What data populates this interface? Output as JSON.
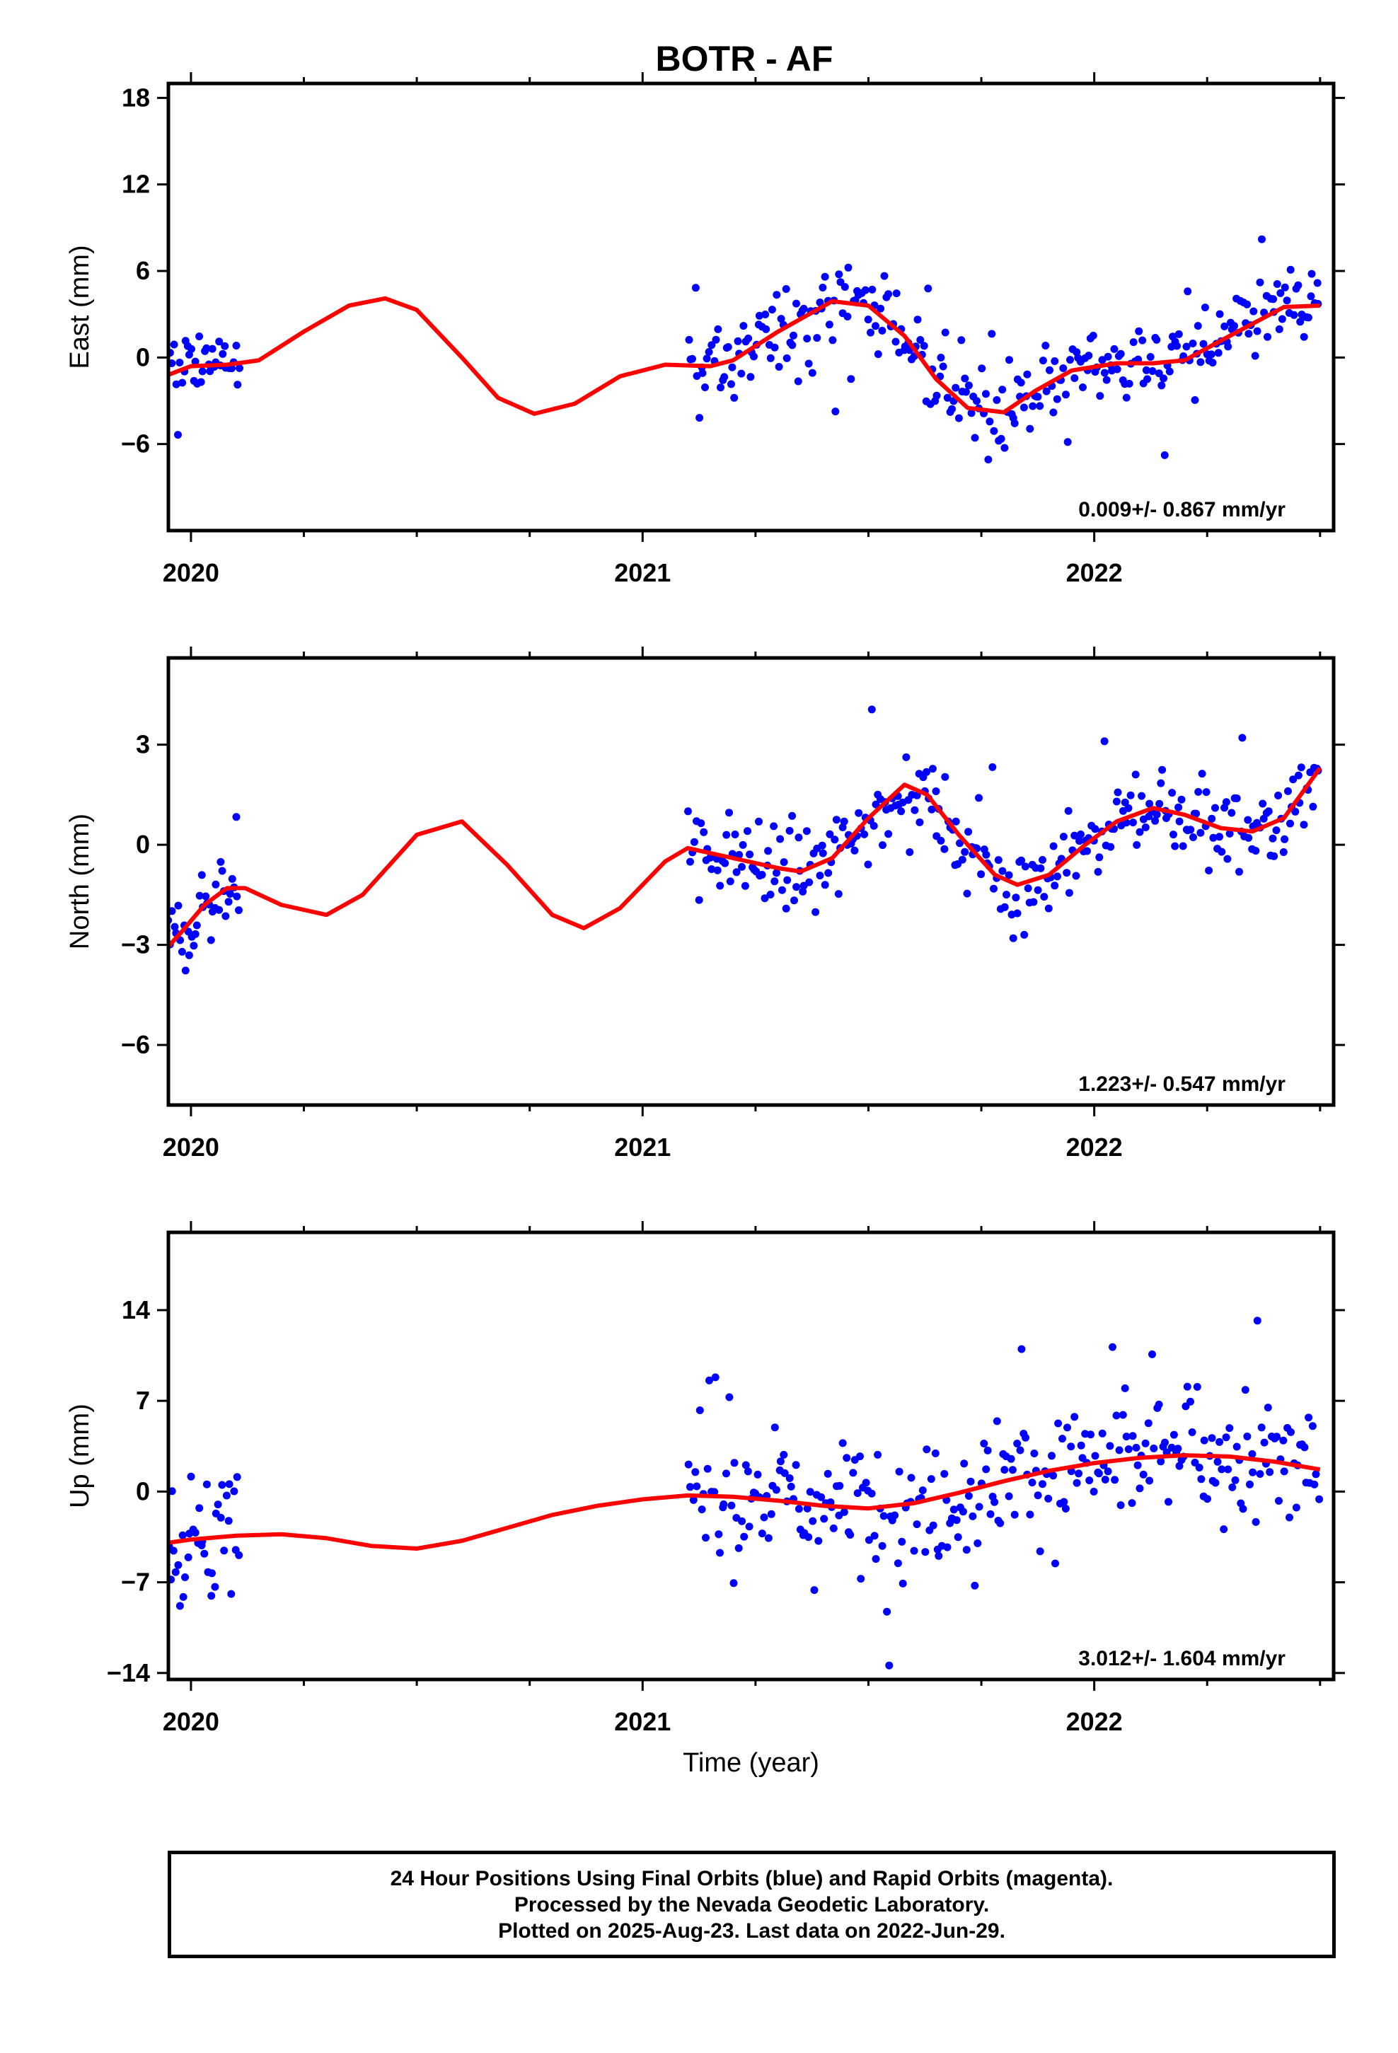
{
  "title": "BOTR - AF",
  "colors": {
    "points": "#0000ff",
    "fit": "#ff0000",
    "frame": "#000000"
  },
  "chart_data": [
    {
      "type": "scatter",
      "name": "east",
      "ylabel": "East (mm)",
      "xlabel": "",
      "rate": "0.009+/- 0.867 mm/yr",
      "xlim": [
        2019.95,
        2022.53
      ],
      "ylim": [
        -12.0,
        19.0
      ],
      "yticks": [
        -6,
        0,
        6,
        12,
        18
      ],
      "xticks": [
        2020,
        2021,
        2022
      ],
      "xtick_labels": [
        "2020",
        "2021",
        "2022"
      ],
      "fit_curve": [
        [
          2019.95,
          -1.2
        ],
        [
          2020.0,
          -0.6
        ],
        [
          2020.08,
          -0.5
        ],
        [
          2020.15,
          -0.2
        ],
        [
          2020.25,
          1.8
        ],
        [
          2020.35,
          3.6
        ],
        [
          2020.43,
          4.1
        ],
        [
          2020.5,
          3.3
        ],
        [
          2020.6,
          0.0
        ],
        [
          2020.68,
          -2.8
        ],
        [
          2020.76,
          -3.9
        ],
        [
          2020.85,
          -3.2
        ],
        [
          2020.95,
          -1.3
        ],
        [
          2021.05,
          -0.5
        ],
        [
          2021.15,
          -0.6
        ],
        [
          2021.2,
          -0.2
        ],
        [
          2021.3,
          1.8
        ],
        [
          2021.42,
          3.9
        ],
        [
          2021.5,
          3.6
        ],
        [
          2021.58,
          1.5
        ],
        [
          2021.65,
          -1.5
        ],
        [
          2021.72,
          -3.5
        ],
        [
          2021.8,
          -3.8
        ],
        [
          2021.87,
          -2.3
        ],
        [
          2021.95,
          -0.9
        ],
        [
          2022.05,
          -0.4
        ],
        [
          2022.13,
          -0.4
        ],
        [
          2022.2,
          -0.2
        ],
        [
          2022.3,
          1.5
        ],
        [
          2022.42,
          3.5
        ],
        [
          2022.5,
          3.6
        ]
      ]
    },
    {
      "type": "scatter",
      "name": "north",
      "ylabel": "North (mm)",
      "xlabel": "",
      "rate": "1.223+/- 0.547 mm/yr",
      "xlim": [
        2019.95,
        2022.53
      ],
      "ylim": [
        -7.8,
        5.6
      ],
      "yticks": [
        -6,
        -3,
        0,
        3
      ],
      "xticks": [
        2020,
        2021,
        2022
      ],
      "xtick_labels": [
        "2020",
        "2021",
        "2022"
      ],
      "fit_curve": [
        [
          2019.94,
          -3.2
        ],
        [
          2019.98,
          -2.6
        ],
        [
          2020.03,
          -1.8
        ],
        [
          2020.08,
          -1.3
        ],
        [
          2020.12,
          -1.3
        ],
        [
          2020.2,
          -1.8
        ],
        [
          2020.3,
          -2.1
        ],
        [
          2020.38,
          -1.5
        ],
        [
          2020.5,
          0.3
        ],
        [
          2020.6,
          0.7
        ],
        [
          2020.7,
          -0.6
        ],
        [
          2020.8,
          -2.1
        ],
        [
          2020.87,
          -2.5
        ],
        [
          2020.95,
          -1.9
        ],
        [
          2021.05,
          -0.5
        ],
        [
          2021.1,
          -0.1
        ],
        [
          2021.2,
          -0.4
        ],
        [
          2021.3,
          -0.7
        ],
        [
          2021.35,
          -0.8
        ],
        [
          2021.42,
          -0.4
        ],
        [
          2021.5,
          0.8
        ],
        [
          2021.58,
          1.8
        ],
        [
          2021.63,
          1.5
        ],
        [
          2021.7,
          0.3
        ],
        [
          2021.78,
          -0.9
        ],
        [
          2021.83,
          -1.2
        ],
        [
          2021.9,
          -0.9
        ],
        [
          2021.98,
          0.0
        ],
        [
          2022.05,
          0.7
        ],
        [
          2022.13,
          1.1
        ],
        [
          2022.2,
          0.9
        ],
        [
          2022.28,
          0.5
        ],
        [
          2022.35,
          0.4
        ],
        [
          2022.42,
          0.8
        ],
        [
          2022.5,
          2.3
        ]
      ]
    },
    {
      "type": "scatter",
      "name": "up",
      "ylabel": "Up (mm)",
      "xlabel": "Time (year)",
      "rate": "3.012+/- 1.604 mm/yr",
      "xlim": [
        2019.95,
        2022.53
      ],
      "ylim": [
        -14.5,
        20.0
      ],
      "yticks": [
        -14,
        -7,
        0,
        7,
        14
      ],
      "xticks": [
        2020,
        2021,
        2022
      ],
      "xtick_labels": [
        "2020",
        "2021",
        "2022"
      ],
      "fit_curve": [
        [
          2019.94,
          -4.0
        ],
        [
          2020.0,
          -3.7
        ],
        [
          2020.1,
          -3.4
        ],
        [
          2020.2,
          -3.3
        ],
        [
          2020.3,
          -3.6
        ],
        [
          2020.4,
          -4.2
        ],
        [
          2020.5,
          -4.4
        ],
        [
          2020.6,
          -3.8
        ],
        [
          2020.7,
          -2.8
        ],
        [
          2020.8,
          -1.8
        ],
        [
          2020.9,
          -1.1
        ],
        [
          2021.0,
          -0.6
        ],
        [
          2021.1,
          -0.3
        ],
        [
          2021.2,
          -0.4
        ],
        [
          2021.3,
          -0.7
        ],
        [
          2021.4,
          -1.1
        ],
        [
          2021.5,
          -1.3
        ],
        [
          2021.6,
          -0.9
        ],
        [
          2021.7,
          -0.1
        ],
        [
          2021.8,
          0.8
        ],
        [
          2021.9,
          1.6
        ],
        [
          2022.0,
          2.2
        ],
        [
          2022.1,
          2.6
        ],
        [
          2022.2,
          2.8
        ],
        [
          2022.3,
          2.7
        ],
        [
          2022.4,
          2.3
        ],
        [
          2022.5,
          1.7
        ]
      ]
    }
  ],
  "caption": {
    "line1": "24 Hour Positions Using Final Orbits (blue) and Rapid Orbits (magenta).",
    "line2": "Processed by the Nevada Geodetic Laboratory.",
    "line3": "Plotted on 2025-Aug-23. Last data on 2022-Jun-29."
  }
}
